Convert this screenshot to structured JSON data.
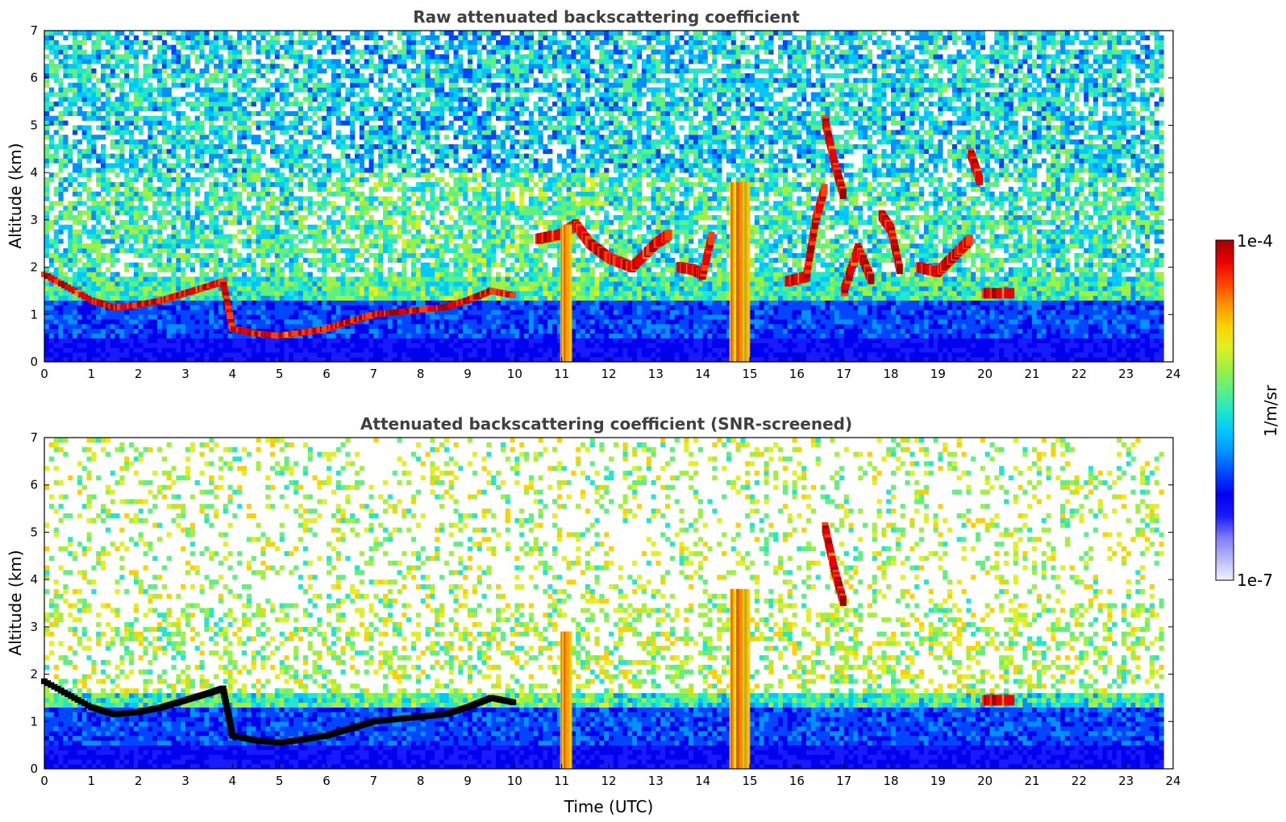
{
  "figure": {
    "xlabel": "Time (UTC)",
    "colorbar": {
      "label": "1/m/sr",
      "max_label": "1e-4",
      "min_label": "1e-7",
      "colormap": [
        "#f0f0ff",
        "#b8b8f8",
        "#7d7df5",
        "#1a1aff",
        "#0000ee",
        "#0045ff",
        "#0090ff",
        "#00c8ff",
        "#20e8c8",
        "#60f080",
        "#a0f040",
        "#e0f020",
        "#ffd000",
        "#ff9000",
        "#ff4000",
        "#e80000",
        "#a00000"
      ]
    }
  },
  "chart_data": [
    {
      "type": "heatmap",
      "title": "Raw attenuated backscattering coefficient",
      "ylabel": "Altitude (km)",
      "xlim": [
        0,
        24
      ],
      "ylim": [
        0,
        7
      ],
      "x_ticks": [
        "0",
        "1",
        "2",
        "3",
        "4",
        "5",
        "6",
        "7",
        "8",
        "9",
        "10",
        "11",
        "12",
        "13",
        "14",
        "15",
        "16",
        "17",
        "18",
        "19",
        "20",
        "21",
        "22",
        "23",
        "24"
      ],
      "y_ticks": [
        "0",
        "1",
        "2",
        "3",
        "4",
        "5",
        "6",
        "7"
      ],
      "value_range": [
        1e-07,
        0.0001
      ],
      "scale": "log",
      "features": [
        {
          "kind": "boundary_layer_top",
          "x": [
            0.0,
            1.0,
            1.5,
            2.0,
            2.5,
            3.0,
            3.5,
            3.8,
            4.0,
            4.5,
            5.0,
            5.5,
            6.0,
            6.5,
            7.0,
            7.5,
            8.0,
            8.5,
            9.0,
            9.5,
            10.0
          ],
          "y": [
            1.85,
            1.3,
            1.15,
            1.2,
            1.3,
            1.45,
            1.6,
            1.7,
            0.7,
            0.6,
            0.55,
            0.62,
            0.7,
            0.85,
            1.0,
            1.05,
            1.1,
            1.15,
            1.3,
            1.5,
            1.4
          ]
        },
        {
          "kind": "cloud_layer",
          "x": [
            10.5,
            11.0,
            11.3,
            11.6,
            12.0,
            12.5,
            13.0,
            13.3
          ],
          "y": [
            2.6,
            2.7,
            2.9,
            2.5,
            2.2,
            2.0,
            2.5,
            2.7
          ]
        },
        {
          "kind": "cloud_layer",
          "x": [
            13.5,
            13.8,
            14.0,
            14.2
          ],
          "y": [
            2.0,
            1.95,
            1.85,
            2.7
          ]
        },
        {
          "kind": "precipitation_column",
          "x": [
            11.0,
            11.2
          ],
          "y": [
            0.0,
            2.9
          ]
        },
        {
          "kind": "precipitation_column",
          "x": [
            14.6,
            15.0
          ],
          "y": [
            0.0,
            3.8
          ]
        },
        {
          "kind": "cirrus_streak",
          "x": [
            16.6,
            16.8,
            17.0
          ],
          "y": [
            5.1,
            4.2,
            3.5
          ]
        },
        {
          "kind": "cloud_layer",
          "x": [
            15.8,
            16.2,
            16.4,
            16.6
          ],
          "y": [
            1.7,
            1.8,
            3.0,
            3.7
          ]
        },
        {
          "kind": "cloud_layer",
          "x": [
            17.0,
            17.3,
            17.6
          ],
          "y": [
            1.5,
            2.4,
            1.7
          ]
        },
        {
          "kind": "cloud_layer",
          "x": [
            17.8,
            18.0,
            18.2
          ],
          "y": [
            3.1,
            2.8,
            1.9
          ]
        },
        {
          "kind": "cloud_layer",
          "x": [
            18.6,
            19.0,
            19.4,
            19.7
          ],
          "y": [
            2.0,
            1.9,
            2.3,
            2.6
          ]
        },
        {
          "kind": "cloud_layer",
          "x": [
            19.7,
            19.9
          ],
          "y": [
            4.4,
            3.8
          ]
        },
        {
          "kind": "cloud_layer",
          "x": [
            20.0,
            20.6
          ],
          "y": [
            1.45,
            1.45
          ]
        }
      ]
    },
    {
      "type": "heatmap",
      "title": "Attenuated backscattering coefficient (SNR-screened)",
      "ylabel": "Altitude (km)",
      "xlabel": "Time (UTC)",
      "xlim": [
        0,
        24
      ],
      "ylim": [
        0,
        7
      ],
      "x_ticks": [
        "0",
        "1",
        "2",
        "3",
        "4",
        "5",
        "6",
        "7",
        "8",
        "9",
        "10",
        "11",
        "12",
        "13",
        "14",
        "15",
        "16",
        "17",
        "18",
        "19",
        "20",
        "21",
        "22",
        "23",
        "24"
      ],
      "y_ticks": [
        "0",
        "1",
        "2",
        "3",
        "4",
        "5",
        "6",
        "7"
      ],
      "value_range": [
        1e-07,
        0.0001
      ],
      "scale": "log",
      "features": [
        {
          "kind": "boundary_layer_top",
          "x": [
            0.0,
            1.0,
            1.5,
            2.0,
            2.5,
            3.0,
            3.5,
            3.8,
            4.0,
            4.5,
            5.0,
            5.5,
            6.0,
            6.5,
            7.0,
            7.5,
            8.0,
            8.5,
            9.0,
            9.5,
            10.0
          ],
          "y": [
            1.85,
            1.3,
            1.15,
            1.2,
            1.3,
            1.45,
            1.6,
            1.7,
            0.7,
            0.6,
            0.55,
            0.62,
            0.7,
            0.85,
            1.0,
            1.05,
            1.1,
            1.15,
            1.3,
            1.5,
            1.4
          ]
        },
        {
          "kind": "precipitation_column",
          "x": [
            11.0,
            11.2
          ],
          "y": [
            0.0,
            2.9
          ]
        },
        {
          "kind": "precipitation_column",
          "x": [
            14.6,
            15.0
          ],
          "y": [
            0.0,
            3.8
          ]
        },
        {
          "kind": "cirrus_streak",
          "x": [
            16.6,
            16.8,
            17.0
          ],
          "y": [
            5.1,
            4.2,
            3.5
          ]
        },
        {
          "kind": "cloud_layer",
          "x": [
            20.0,
            20.6
          ],
          "y": [
            1.45,
            1.45
          ]
        }
      ]
    }
  ]
}
